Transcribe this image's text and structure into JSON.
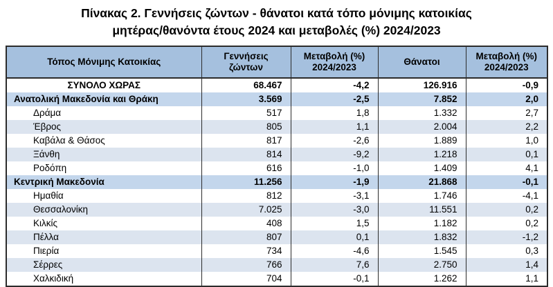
{
  "title": {
    "line1": "Πίνακας 2. Γεννήσεις ζώντων - θάνατοι κατά τόπο μόνιμης κατοικίας",
    "line2": "μητέρας/θανόντα έτους 2024 και μεταβολές (%) 2024/2023"
  },
  "table": {
    "columns": [
      "Τόπος Μόνιμης Κατοικίας",
      "Γεννήσεις\nζώντων",
      "Μεταβολή (%)\n2024/2023",
      "Θάνατοι",
      "Μεταβολή (%)\n2024/2023"
    ],
    "rows": [
      {
        "type": "total",
        "name": "ΣΥΝΟΛΟ ΧΩΡΑΣ",
        "births": "68.467",
        "births_change": "-4,2",
        "deaths": "126.916",
        "deaths_change": "-0,9"
      },
      {
        "type": "region",
        "name": "Ανατολική Μακεδονία και Θράκη",
        "births": "3.569",
        "births_change": "-2,5",
        "deaths": "7.852",
        "deaths_change": "2,0"
      },
      {
        "type": "prefecture",
        "name": "Δράμα",
        "births": "517",
        "births_change": "1,8",
        "deaths": "1.332",
        "deaths_change": "2,7"
      },
      {
        "type": "prefecture",
        "name": "Έβρος",
        "births": "805",
        "births_change": "1,1",
        "deaths": "2.004",
        "deaths_change": "2,2"
      },
      {
        "type": "prefecture",
        "name": "Καβάλα & Θάσος",
        "births": "817",
        "births_change": "-2,6",
        "deaths": "1.889",
        "deaths_change": "1,0"
      },
      {
        "type": "prefecture",
        "name": "Ξάνθη",
        "births": "814",
        "births_change": "-9,2",
        "deaths": "1.218",
        "deaths_change": "0,1"
      },
      {
        "type": "prefecture",
        "name": "Ροδόπη",
        "births": "616",
        "births_change": "-1,0",
        "deaths": "1.409",
        "deaths_change": "4,1"
      },
      {
        "type": "region",
        "name": "Κεντρική Μακεδονία",
        "births": "11.256",
        "births_change": "-1,9",
        "deaths": "21.868",
        "deaths_change": "-0,1"
      },
      {
        "type": "prefecture",
        "name": "Ημαθία",
        "births": "812",
        "births_change": "-3,1",
        "deaths": "1.746",
        "deaths_change": "-4,1"
      },
      {
        "type": "prefecture",
        "name": "Θεσσαλονίκη",
        "births": "7.025",
        "births_change": "-3,0",
        "deaths": "11.551",
        "deaths_change": "0,2"
      },
      {
        "type": "prefecture",
        "name": "Κιλκίς",
        "births": "408",
        "births_change": "1,5",
        "deaths": "1.182",
        "deaths_change": "0,2"
      },
      {
        "type": "prefecture",
        "name": "Πέλλα",
        "births": "807",
        "births_change": "0,1",
        "deaths": "1.832",
        "deaths_change": "-1,2"
      },
      {
        "type": "prefecture",
        "name": "Πιερία",
        "births": "734",
        "births_change": "-4,6",
        "deaths": "1.545",
        "deaths_change": "0,3"
      },
      {
        "type": "prefecture",
        "name": "Σέρρες",
        "births": "766",
        "births_change": "7,6",
        "deaths": "2.750",
        "deaths_change": "1,4"
      },
      {
        "type": "prefecture",
        "name": "Χαλκιδική",
        "births": "704",
        "births_change": "-0,1",
        "deaths": "1.262",
        "deaths_change": "1,1"
      }
    ]
  },
  "colors": {
    "header_bg": "#A5C0DE",
    "region_row_bg": "#C3D6EC",
    "stripe_row_bg": "#DCE4EF",
    "border": "#2B2B2B",
    "text": "#000000"
  }
}
